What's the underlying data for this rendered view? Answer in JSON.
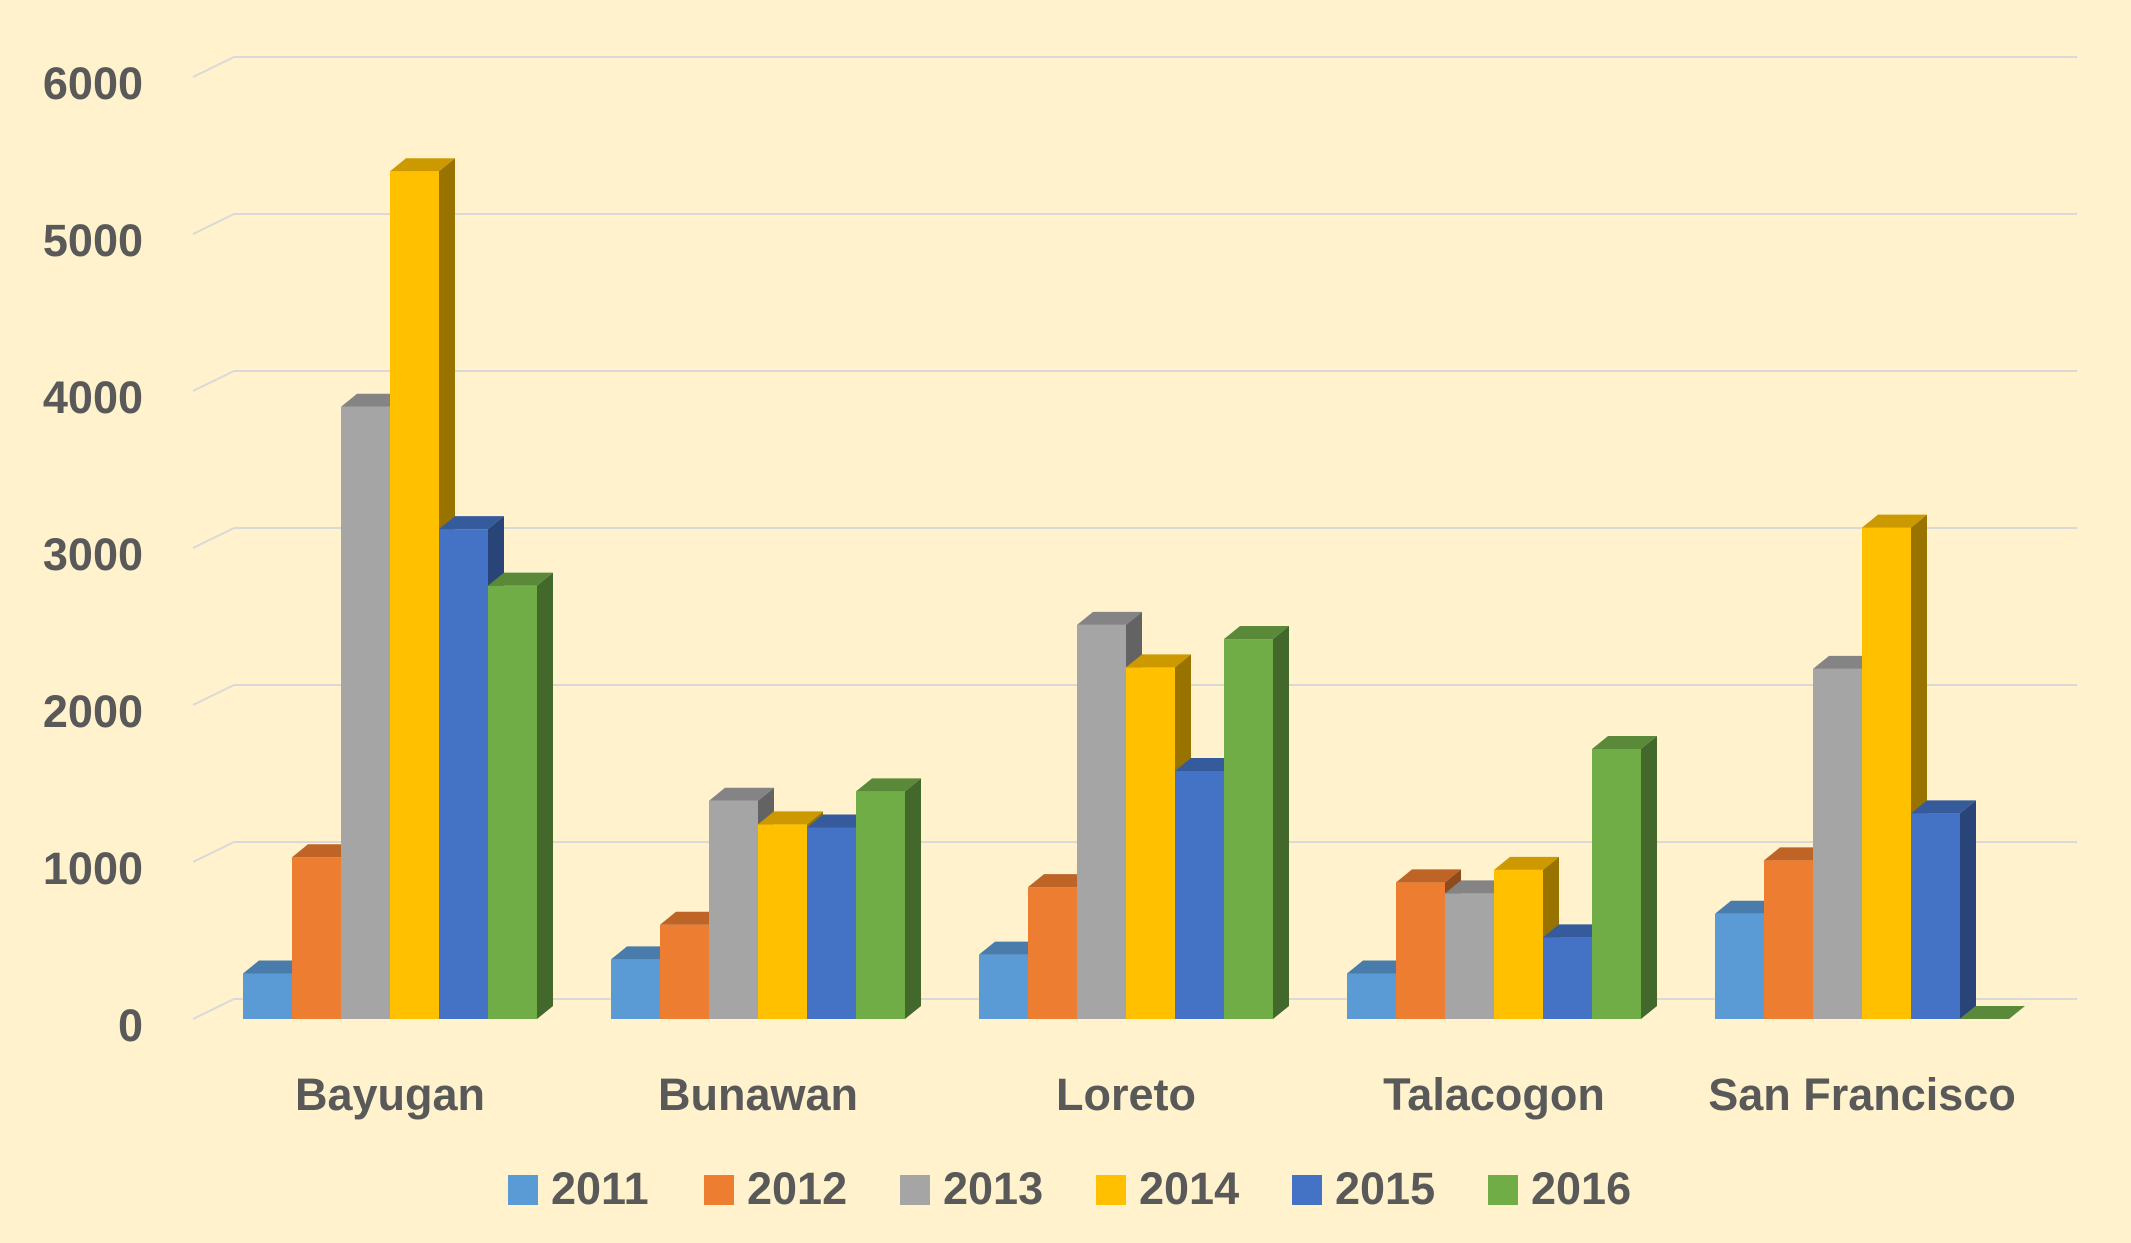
{
  "chart_data": {
    "type": "bar3d",
    "categories": [
      "Bayugan",
      "Bunawan",
      "Loreto",
      "Talacogon",
      "San Francisco"
    ],
    "series": [
      {
        "name": "2011",
        "color": "#5b9bd5",
        "values": [
          290,
          380,
          410,
          290,
          670
        ]
      },
      {
        "name": "2012",
        "color": "#ed7d31",
        "values": [
          1030,
          600,
          840,
          870,
          1010
        ]
      },
      {
        "name": "2013",
        "color": "#a5a5a5",
        "values": [
          3900,
          1390,
          2510,
          800,
          2230
        ]
      },
      {
        "name": "2014",
        "color": "#ffc000",
        "values": [
          5400,
          1240,
          2240,
          950,
          3130
        ]
      },
      {
        "name": "2015",
        "color": "#4472c4",
        "values": [
          3120,
          1220,
          1580,
          520,
          1310
        ]
      },
      {
        "name": "2016",
        "color": "#70ad47",
        "values": [
          2760,
          1450,
          2420,
          1720,
          0
        ]
      }
    ],
    "ylim": [
      0,
      6000
    ],
    "yticks": [
      0,
      1000,
      2000,
      3000,
      4000,
      5000,
      6000
    ],
    "grid": true,
    "legend": "bottom"
  }
}
